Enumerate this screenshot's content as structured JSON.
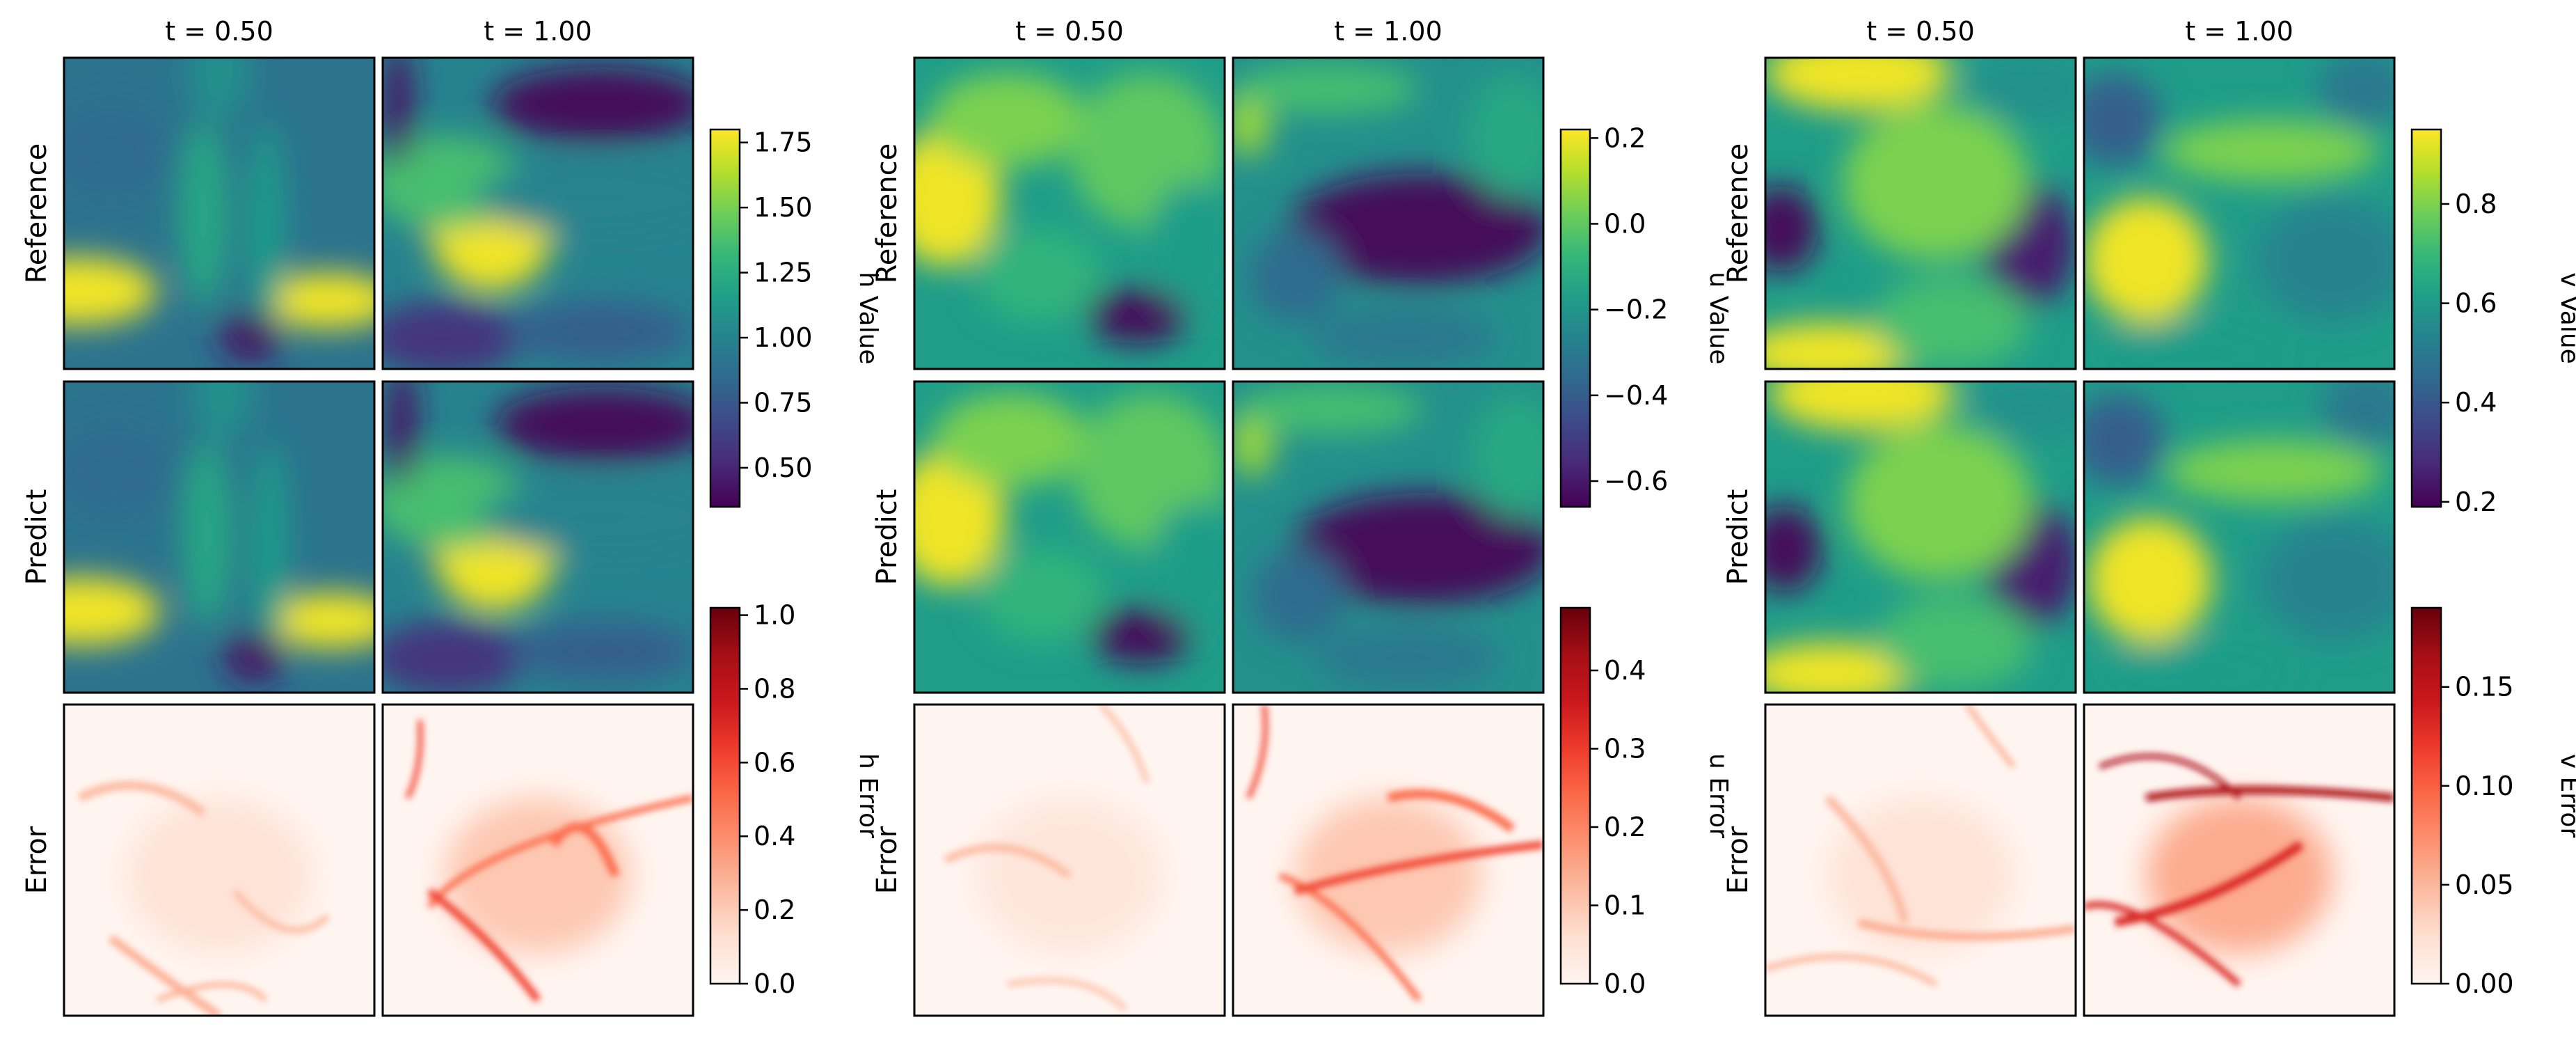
{
  "chart_data": {
    "type": "heatmap",
    "columns": [
      "t = 0.50",
      "t = 1.00"
    ],
    "rows": [
      "Reference",
      "Predict",
      "Error"
    ],
    "colormaps": {
      "value": "viridis",
      "error": "Reds"
    },
    "colors": {
      "viridis": [
        "#440154",
        "#482878",
        "#3e4989",
        "#31688e",
        "#26828e",
        "#1f9e89",
        "#35b779",
        "#6ece58",
        "#b5de2b",
        "#fde725"
      ],
      "reds": [
        "#fff5f0",
        "#fee0d2",
        "#fcbba1",
        "#fc9272",
        "#fb6a4a",
        "#ef3b2c",
        "#cb181d",
        "#a50f15",
        "#67000d"
      ]
    },
    "groups": [
      {
        "variable": "h",
        "value_colorbar": {
          "label": "h Value",
          "range": [
            0.35,
            1.8
          ],
          "ticks": [
            0.5,
            0.75,
            1.0,
            1.25,
            1.5,
            1.75
          ],
          "tick_labels": [
            "0.50",
            "0.75",
            "1.00",
            "1.25",
            "1.50",
            "1.75"
          ]
        },
        "error_colorbar": {
          "label": "h Error",
          "range": [
            0.0,
            1.02
          ],
          "ticks": [
            0.0,
            0.2,
            0.4,
            0.6,
            0.8,
            1.0
          ],
          "tick_labels": [
            "0.0",
            "0.2",
            "0.4",
            "0.6",
            "0.8",
            "1.0"
          ]
        }
      },
      {
        "variable": "u",
        "value_colorbar": {
          "label": "u Value",
          "range": [
            -0.66,
            0.22
          ],
          "ticks": [
            -0.6,
            -0.4,
            -0.2,
            0.0,
            0.2
          ],
          "tick_labels": [
            "−0.6",
            "−0.4",
            "−0.2",
            "0.0",
            "0.2"
          ]
        },
        "error_colorbar": {
          "label": "u Error",
          "range": [
            0.0,
            0.48
          ],
          "ticks": [
            0.0,
            0.1,
            0.2,
            0.3,
            0.4
          ],
          "tick_labels": [
            "0.0",
            "0.1",
            "0.2",
            "0.3",
            "0.4"
          ]
        }
      },
      {
        "variable": "v",
        "value_colorbar": {
          "label": "v Value",
          "range": [
            0.19,
            0.95
          ],
          "ticks": [
            0.2,
            0.4,
            0.6,
            0.8
          ],
          "tick_labels": [
            "0.2",
            "0.4",
            "0.6",
            "0.8"
          ]
        },
        "error_colorbar": {
          "label": "v Error",
          "range": [
            0.0,
            0.19
          ],
          "ticks": [
            0.0,
            0.05,
            0.1,
            0.15
          ],
          "tick_labels": [
            "0.00",
            "0.05",
            "0.10",
            "0.15"
          ]
        }
      }
    ]
  }
}
